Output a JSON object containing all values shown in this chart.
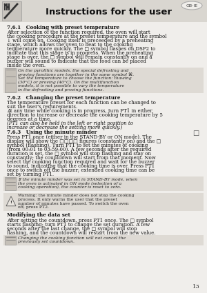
{
  "title": "Instructions for the user",
  "page_number": "13",
  "country_code": "GB-IE",
  "bg_color": "#f0eeeb",
  "header_bg": "#d9d6d0",
  "sections": [
    {
      "id": "761",
      "heading": "7.6.1   Cooking with preset temperature",
      "body": [
        "After selection of the function required, the oven will start the cooking procedure at the preset temperature and the symbol ↓ will come on. Cooking itself is preceeded by a preheating stage, which allows the oven to heat to the cooking temperature more quickly. The □ symbol flashes on DSP2 to indicate that this stage is in progress. When the preheating stage is over, the □ symbol will remain constantly on and a buzzer will sound to indicate that the food can be placed inside the oven."
      ],
      "note": {
        "text": "On the pyrolthic models, the special defrosting and proving functions are together in the same symbol ⌘. Set the temperature to choose the function: thawing (30°C) or proving (40°C). On the multifunction models, it is not possible to vary the temperature in the defrosting and proving functions.",
        "type": "info",
        "italic": true
      }
    },
    {
      "id": "762",
      "heading": "7.6.2   Changing the preset temperature",
      "body": [
        "The temperature preset for each function can be changed to suit the user's requirements.",
        "At any time while cooking is in progress, turn PT1 in either direction to increase or decrease the cooking temperature by 5 degrees at a time.",
        "(PT1 can also be held in the left or right position to increase or decrease the setting more quickly.)"
      ]
    },
    {
      "id": "763",
      "heading": "7.6.3   Using the minute minder",
      "has_bell": true,
      "body": [
        "Press PT1 once (either in the STAND-BY or ON mode). The display will show the □□□□ figures (constantly on) and the □ symbol (flashing). Turn PT1 to set the minutes of cooking (from 00:01 to 03:59:00). A few seconds after the required duration is set, the □ symbol will stop flashing and stay on constantly; the countdown will start from that moment. Now select the cooking function required and wait for the buzzer to sound, indicating that the cooking time is over. Press PT1 once to switch off the buzzer; extended cooking time can be set by turning PT1."
      ],
      "note1": {
        "text": "If the minute minder was set in STAND-BY mode, when the oven is activated in ON mode (selection of a cooking operation), the counter is reset to zero.",
        "type": "info",
        "italic": true
      },
      "note2": {
        "text": "Warning: the minute minder does not stop the cooking process. It only warns the user that the preset number of minutes have passed. To switch the oven off, press PT2.",
        "type": "warning",
        "italic": false
      }
    },
    {
      "id": "mod",
      "heading": "Modifying the data set",
      "heading_bold": true,
      "body": [
        "After setting the countdown, press PT1 once. The □ symbol starts flashing; turn PT1 to change the set duration. A few seconds after the last change, the □ symbol will stop flashing, and the countdown will restart from the new value."
      ],
      "note": {
        "text": "Changing the cooking function will not cancel the previously set countdown.",
        "type": "info",
        "italic": true
      }
    }
  ]
}
